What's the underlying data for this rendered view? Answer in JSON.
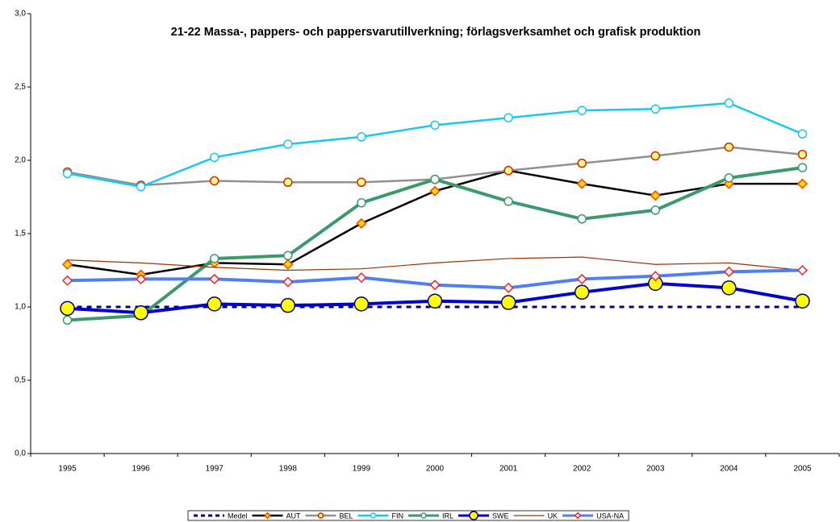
{
  "chart_data": {
    "type": "line",
    "title": "21-22 Massa-, pappers- och pappersvarutillverkning; förlagsverksamhet och grafisk produktion",
    "categories": [
      "1995",
      "1996",
      "1997",
      "1998",
      "1999",
      "2000",
      "2001",
      "2002",
      "2003",
      "2004",
      "2005"
    ],
    "ylim": [
      0,
      3
    ],
    "yticks": [
      {
        "value": 0,
        "label": "0,0"
      },
      {
        "value": 0.5,
        "label": "0,5"
      },
      {
        "value": 1,
        "label": "1,0"
      },
      {
        "value": 1.5,
        "label": "1,5"
      },
      {
        "value": 2,
        "label": "2,0"
      },
      {
        "value": 2.5,
        "label": "2,5"
      },
      {
        "value": 3,
        "label": "3,0"
      }
    ],
    "grid": false,
    "legend": "bottom",
    "series": [
      {
        "name": "Medel",
        "color": "#000080",
        "width": 3,
        "dash": true,
        "marker": "none",
        "values": [
          1,
          1,
          1,
          1,
          1,
          1,
          1,
          1,
          1,
          1,
          1
        ]
      },
      {
        "name": "AUT",
        "color": "#000000",
        "width": 2.5,
        "marker": "diamond",
        "marker_fill": "#ffd700",
        "marker_edge": "#ff4000",
        "values": [
          1.29,
          1.22,
          1.3,
          1.29,
          1.57,
          1.79,
          1.93,
          1.84,
          1.76,
          1.84,
          1.84
        ]
      },
      {
        "name": "BEL",
        "color": "#909090",
        "width": 2.5,
        "marker": "circle",
        "marker_fill": "#ffff80",
        "marker_edge": "#e02000",
        "values": [
          1.92,
          1.83,
          1.86,
          1.85,
          1.85,
          1.87,
          1.93,
          1.98,
          2.03,
          2.09,
          2.04
        ]
      },
      {
        "name": "FIN",
        "color": "#18c8f0",
        "width": 2.5,
        "marker": "circle",
        "marker_fill": "#ffffff",
        "marker_edge": "#18c8f0",
        "values": [
          1.91,
          1.82,
          2.02,
          2.11,
          2.16,
          2.24,
          2.29,
          2.34,
          2.35,
          2.39,
          2.18
        ]
      },
      {
        "name": "IRL",
        "color": "#3a9a6a",
        "width": 4,
        "marker": "circle",
        "marker_fill": "#ffffff",
        "marker_edge": "#3a9a6a",
        "values": [
          0.91,
          0.94,
          1.33,
          1.35,
          1.71,
          1.87,
          1.72,
          1.6,
          1.66,
          1.88,
          1.95
        ]
      },
      {
        "name": "SWE",
        "color": "#0000d0",
        "width": 4,
        "marker": "bigcircle",
        "marker_fill": "#ffff00",
        "marker_edge": "#000080",
        "values": [
          0.99,
          0.96,
          1.02,
          1.01,
          1.02,
          1.04,
          1.03,
          1.1,
          1.16,
          1.13,
          1.04
        ]
      },
      {
        "name": "UK",
        "color": "#a03000",
        "width": 1.2,
        "marker": "none",
        "values": [
          1.32,
          1.3,
          1.27,
          1.25,
          1.26,
          1.3,
          1.33,
          1.34,
          1.29,
          1.3,
          1.25
        ]
      },
      {
        "name": "USA-NA",
        "color": "#5080f0",
        "width": 4,
        "marker": "diamond",
        "marker_fill": "#ffffff",
        "marker_edge": "#ff2020",
        "values": [
          1.18,
          1.19,
          1.19,
          1.17,
          1.2,
          1.15,
          1.13,
          1.19,
          1.21,
          1.24,
          1.25
        ]
      }
    ]
  }
}
